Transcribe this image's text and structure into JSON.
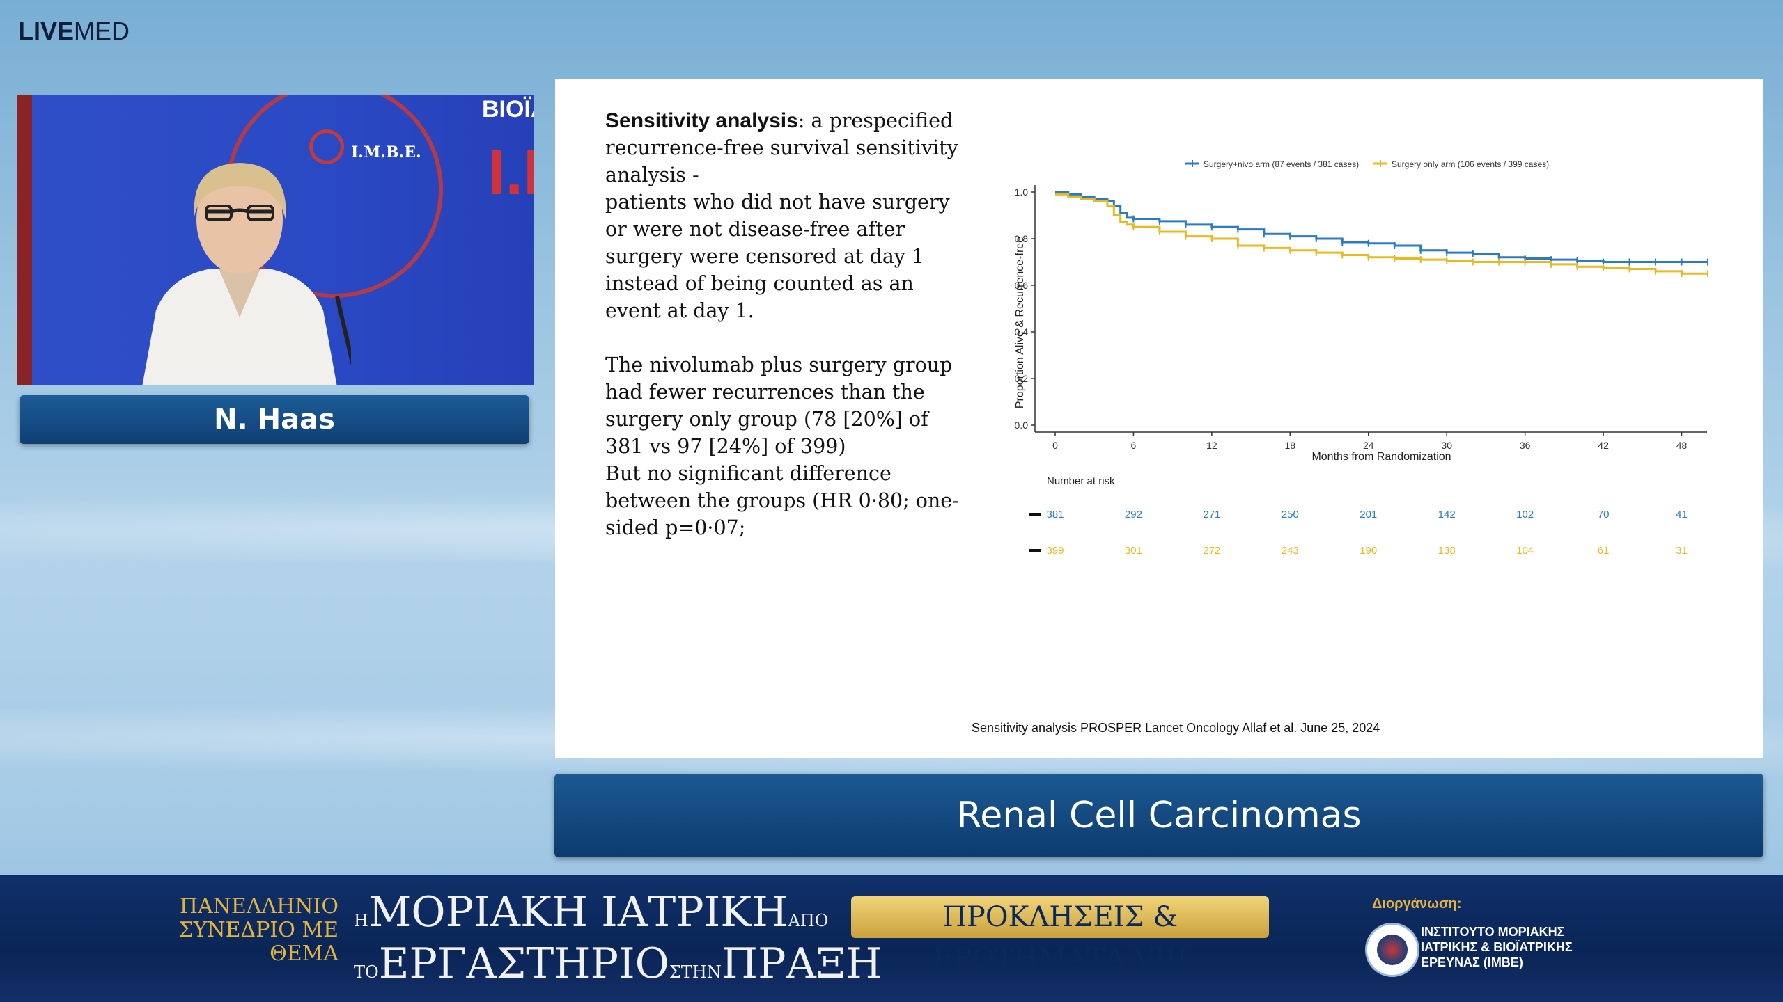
{
  "logo": {
    "bold": "LIVE",
    "regular": "MED"
  },
  "video": {
    "bg_text_1": "ΒΙΟΪΑ",
    "bg_text_2": "I.M",
    "emblem_text": "I.M.B.E."
  },
  "speaker": {
    "name": "N. Haas"
  },
  "slide": {
    "heading": "Sensitivity analysis",
    "para1": ": a prespecified recurrence-free survival sensitivity analysis -",
    "para2": "patients who did not have surgery or were not disease-free after surgery were censored at day 1 instead of being counted as an event at day 1.",
    "para3": "The nivolumab plus surgery group had fewer recurrences than the surgery only group (78 [20%] of 381 vs 97 [24%] of 399)",
    "para4": "But no significant difference between the groups (HR 0·80; one-sided p=0·07;",
    "citation": "Sensitivity analysis PROSPER Lancet Oncology Allaf et al. June 25, 2024"
  },
  "chart_data": {
    "type": "line",
    "xlabel": "Months from Randomization",
    "ylabel": "Proportion Alive & Recurrence-free",
    "xlim": [
      0,
      50
    ],
    "ylim": [
      0,
      1.0
    ],
    "xticks": [
      "0",
      "6",
      "12",
      "18",
      "24",
      "30",
      "36",
      "42",
      "48"
    ],
    "yticks": [
      "0.0",
      "0.2",
      "0.4",
      "0.6",
      "0.8",
      "1.0"
    ],
    "legend_position": "top",
    "series": [
      {
        "name": "Surgery+nivo arm (87 events / 381 cases)",
        "color": "#2a7bc0",
        "x": [
          0,
          1,
          2,
          3,
          4,
          4.5,
          5,
          5.5,
          6,
          8,
          10,
          12,
          14,
          16,
          18,
          20,
          22,
          24,
          26,
          28,
          30,
          32,
          34,
          36,
          38,
          40,
          42,
          44,
          46,
          48,
          50
        ],
        "y": [
          1.0,
          0.99,
          0.98,
          0.97,
          0.96,
          0.94,
          0.91,
          0.89,
          0.885,
          0.875,
          0.86,
          0.85,
          0.84,
          0.82,
          0.81,
          0.8,
          0.785,
          0.78,
          0.77,
          0.75,
          0.74,
          0.735,
          0.72,
          0.715,
          0.71,
          0.705,
          0.7,
          0.7,
          0.7,
          0.7,
          0.7
        ]
      },
      {
        "name": "Surgery only arm (106 events / 399 cases)",
        "color": "#e8b923",
        "x": [
          0,
          1,
          2,
          3,
          4,
          4.5,
          5,
          5.5,
          6,
          8,
          10,
          12,
          14,
          16,
          18,
          20,
          22,
          24,
          26,
          28,
          30,
          32,
          34,
          36,
          38,
          40,
          42,
          44,
          46,
          48,
          50
        ],
        "y": [
          0.99,
          0.98,
          0.97,
          0.96,
          0.94,
          0.9,
          0.87,
          0.86,
          0.85,
          0.83,
          0.81,
          0.8,
          0.77,
          0.76,
          0.75,
          0.74,
          0.73,
          0.72,
          0.715,
          0.71,
          0.705,
          0.7,
          0.7,
          0.7,
          0.69,
          0.68,
          0.675,
          0.67,
          0.66,
          0.65,
          0.65
        ]
      }
    ],
    "risk_table": {
      "title": "Number at risk",
      "rows": [
        {
          "color": "#2a7bc0",
          "values": [
            "381",
            "292",
            "271",
            "250",
            "201",
            "142",
            "102",
            "70",
            "41"
          ]
        },
        {
          "color": "#e8b923",
          "values": [
            "399",
            "301",
            "272",
            "243",
            "190",
            "138",
            "104",
            "61",
            "31"
          ]
        }
      ]
    }
  },
  "topic": {
    "label": "Renal Cell Carcinomas"
  },
  "footer": {
    "event_line": "ΠΑΝΕΛΛΗΝΙΟ ΣΥΝΕΔΡΙΟ ΜΕ ΘΕΜΑ",
    "title_small1": "Η",
    "title_line1": "ΜΟΡΙΑΚΗ ΙΑΤΡΙΚΗ",
    "title_small2": "ΑΠΟ",
    "title_small3": "ΤΟ",
    "title_line2": "ΕΡΓΑΣΤΗΡΙΟ",
    "title_small4": "ΣΤΗΝ",
    "title_line3": "ΠΡΑΞΗ",
    "badge": "ΠΡΟΚΛΗΣΕΙΣ & ΕΡΩΤΗΜΑΤΑ VIII",
    "organizer_label": "Διοργάνωση:",
    "organizer_name": [
      "ΙΝΣΤΙΤΟΥΤΟ ΜΟΡΙΑΚΗΣ",
      "ΙΑΤΡΙΚΗΣ & ΒΙΟΪΑΤΡΙΚΗΣ",
      "ΕΡΕΥΝΑΣ (IMBE)"
    ]
  }
}
